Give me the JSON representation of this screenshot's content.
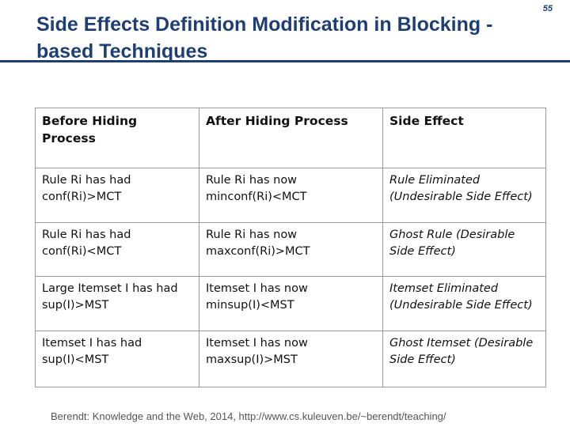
{
  "slide_number": "55",
  "title": "Side Effects Definition Modification in Blocking -based Techniques",
  "table": {
    "headers": [
      "Before Hiding Process",
      "After Hiding Process",
      "Side Effect"
    ],
    "rows": [
      {
        "before_l1": "Rule Ri has had",
        "before_l2": "conf(Ri)>MCT",
        "after_l1": "Rule Ri has now",
        "after_l2": "minconf(Ri)<MCT",
        "effect": "Rule Eliminated (Undesirable Side Effect)"
      },
      {
        "before_l1": "Rule Ri has had",
        "before_l2": "conf(Ri)<MCT",
        "after_l1": "Rule Ri has now",
        "after_l2": "maxconf(Ri)>MCT",
        "effect": "Ghost Rule (Desirable Side Effect)"
      },
      {
        "before_l1": "Large Itemset I has had",
        "before_l2": "sup(I)>MST",
        "after_l1": "Itemset I has now",
        "after_l2": "minsup(I)<MST",
        "effect": "Itemset Eliminated (Undesirable Side Effect)"
      },
      {
        "before_l1": "Itemset I has had",
        "before_l2": "sup(I)<MST",
        "after_l1": "Itemset I has now",
        "after_l2": "maxsup(I)>MST",
        "effect": "Ghost Itemset (Desirable Side Effect)"
      }
    ]
  },
  "footer": "Berendt: Knowledge and the Web, 2014, http://www.cs.kuleuven.be/~berendt/teaching/"
}
